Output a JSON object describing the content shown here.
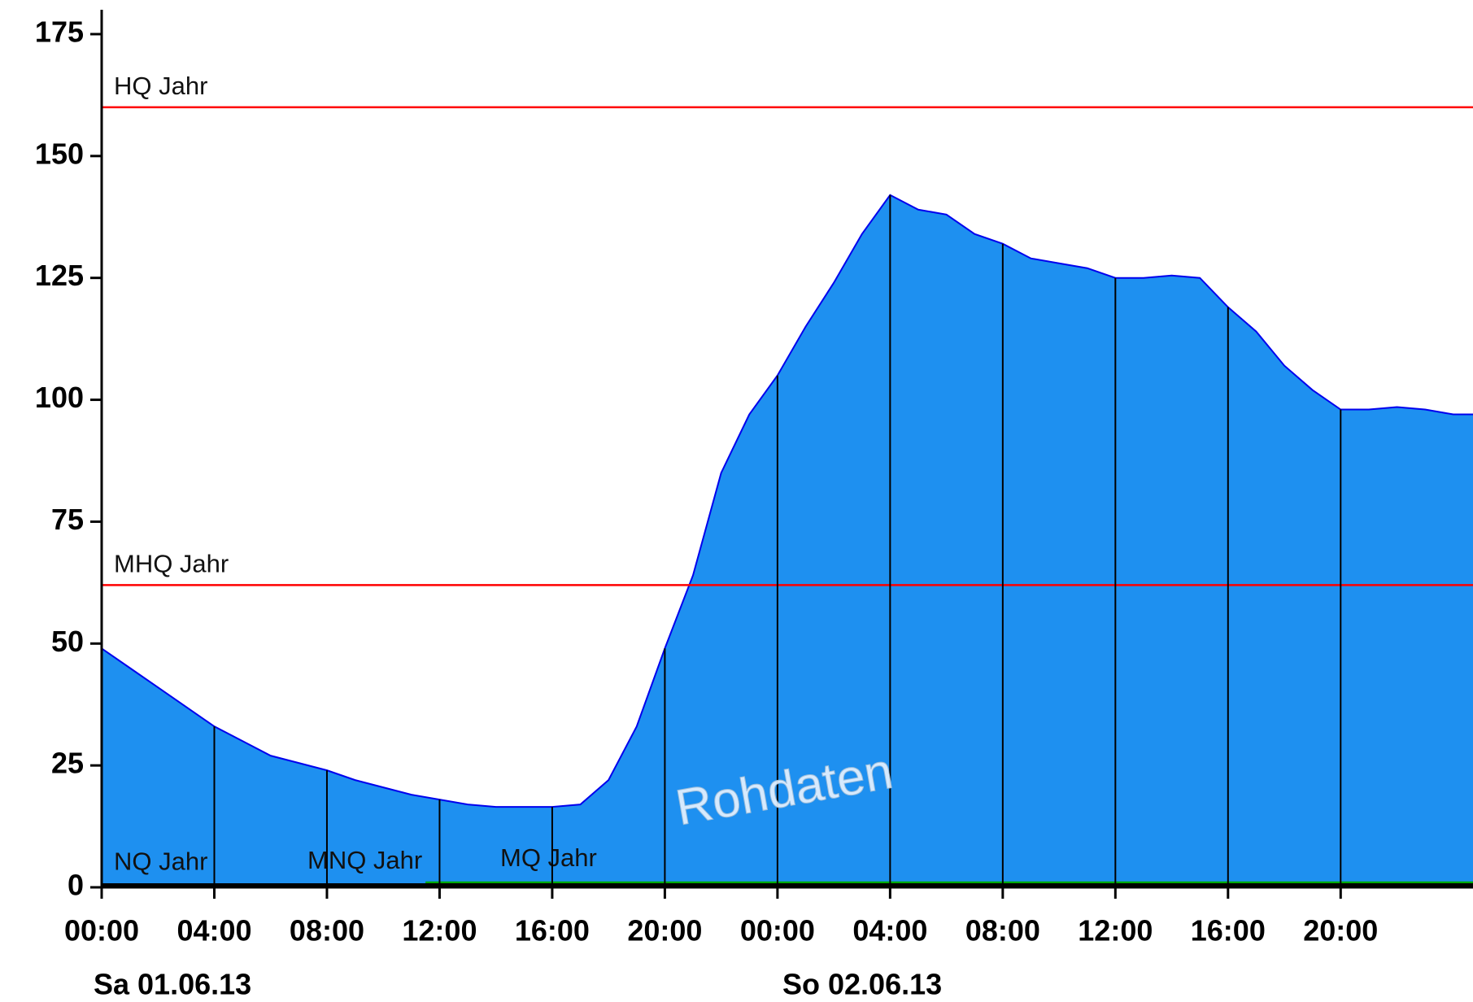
{
  "chart_data": {
    "type": "area",
    "x": [
      0,
      1,
      2,
      3,
      4,
      5,
      6,
      7,
      8,
      9,
      10,
      11,
      12,
      13,
      14,
      15,
      16,
      17,
      18,
      19,
      20,
      21,
      22,
      23,
      24,
      25,
      26,
      27,
      28,
      29,
      30,
      31,
      32,
      33,
      34,
      35,
      36,
      37,
      38,
      39,
      40,
      41,
      42,
      43,
      44,
      45,
      46,
      47,
      48,
      48.7
    ],
    "series": [
      {
        "name": "Rohdaten",
        "color": "#1e90f0",
        "line_color": "#0000ee",
        "values": [
          49,
          45,
          41,
          37,
          33,
          30,
          27,
          25.5,
          24,
          22,
          20.5,
          19,
          18,
          17,
          16.5,
          16.5,
          16.5,
          17,
          22,
          33,
          49,
          64,
          85,
          97,
          105,
          115,
          124,
          134,
          142,
          139,
          138,
          134,
          132,
          129,
          128,
          127,
          125,
          125,
          125.5,
          125,
          119,
          114,
          107,
          102,
          98,
          98,
          98.5,
          98,
          97,
          97
        ]
      }
    ],
    "reference_lines": [
      {
        "name": "HQ Jahr",
        "value": 160,
        "color": "#ff0000"
      },
      {
        "name": "MHQ Jahr",
        "value": 62,
        "color": "#ff0000"
      },
      {
        "name": "MQ Jahr",
        "value": 1,
        "color": "#00aa00"
      },
      {
        "name": "NQ Jahr",
        "value": 0.3,
        "color": "#000000"
      },
      {
        "name": "MNQ Jahr",
        "value": 0.5,
        "color": "#000000"
      }
    ],
    "date_labels": [
      "Sa 01.06.13",
      "So 02.06.13"
    ],
    "watermark": "Rohdaten",
    "xlim": [
      0,
      48.7
    ],
    "xticks": [
      {
        "value": 0,
        "label": "00:00"
      },
      {
        "value": 4,
        "label": "04:00"
      },
      {
        "value": 8,
        "label": "08:00"
      },
      {
        "value": 12,
        "label": "12:00"
      },
      {
        "value": 16,
        "label": "16:00"
      },
      {
        "value": 20,
        "label": "20:00"
      },
      {
        "value": 24,
        "label": "00:00"
      },
      {
        "value": 28,
        "label": "04:00"
      },
      {
        "value": 32,
        "label": "08:00"
      },
      {
        "value": 36,
        "label": "12:00"
      },
      {
        "value": 40,
        "label": "16:00"
      },
      {
        "value": 44,
        "label": "20:00"
      }
    ],
    "ylim": [
      0,
      180
    ],
    "yticks": [
      0,
      25,
      50,
      75,
      100,
      125,
      150,
      175
    ]
  }
}
